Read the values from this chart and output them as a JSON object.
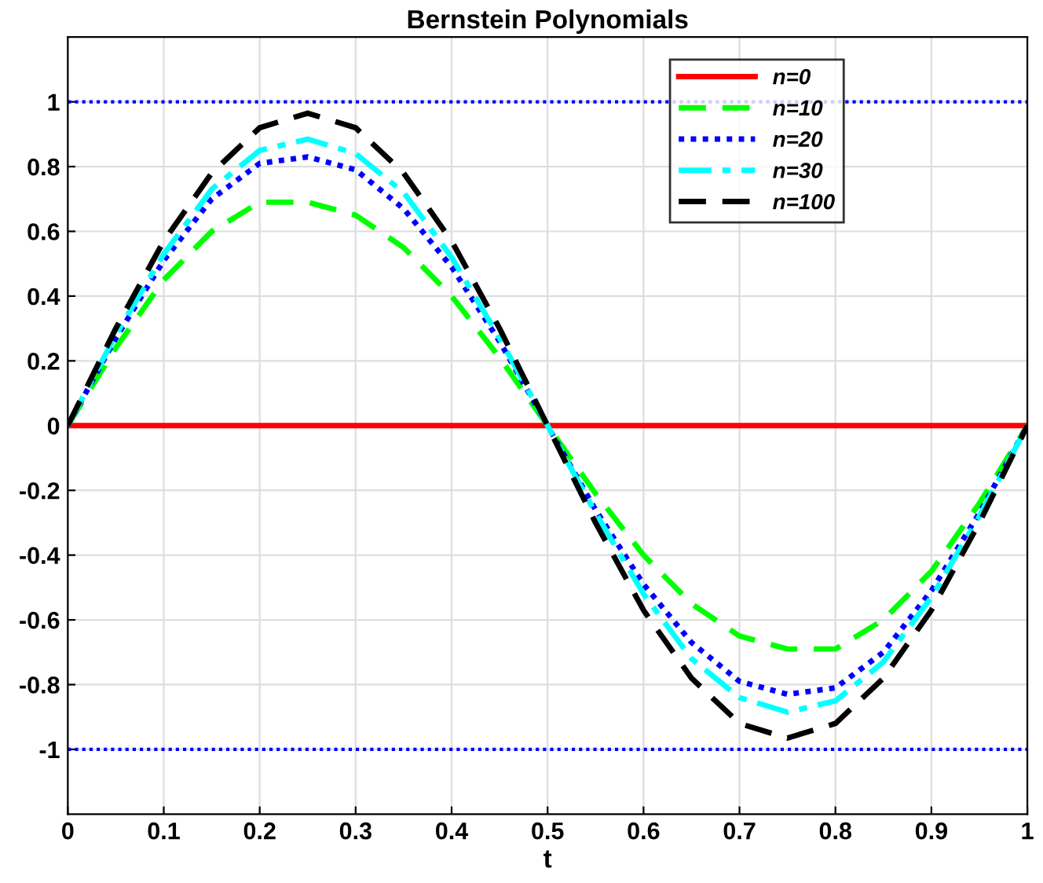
{
  "chart_data": {
    "type": "line",
    "title": "Bernstein Polynomials",
    "xlabel": "t",
    "x": [
      0,
      0.05,
      0.1,
      0.15,
      0.2,
      0.25,
      0.3,
      0.35,
      0.4,
      0.45,
      0.5,
      0.55,
      0.6,
      0.65,
      0.7,
      0.75,
      0.8,
      0.85,
      0.9,
      0.95,
      1
    ],
    "series": [
      {
        "name": "n=0",
        "color": "#ff0000",
        "line_style": "solid",
        "values": [
          0,
          0,
          0,
          0,
          0,
          0,
          0,
          0,
          0,
          0,
          0,
          0,
          0,
          0,
          0,
          0,
          0,
          0,
          0,
          0,
          0
        ]
      },
      {
        "name": "n=10",
        "color": "#00ff00",
        "line_style": "dashed",
        "values": [
          0,
          0.24,
          0.45,
          0.6,
          0.69,
          0.69,
          0.65,
          0.55,
          0.4,
          0.21,
          0,
          -0.21,
          -0.4,
          -0.55,
          -0.65,
          -0.69,
          -0.69,
          -0.6,
          -0.45,
          -0.24,
          0
        ]
      },
      {
        "name": "n=20",
        "color": "#0000ff",
        "line_style": "dotted",
        "values": [
          0,
          0.27,
          0.51,
          0.7,
          0.81,
          0.83,
          0.79,
          0.67,
          0.49,
          0.26,
          0,
          -0.26,
          -0.49,
          -0.67,
          -0.79,
          -0.83,
          -0.81,
          -0.7,
          -0.51,
          -0.27,
          0
        ]
      },
      {
        "name": "n=30",
        "color": "#00ffff",
        "line_style": "dashdot",
        "values": [
          0,
          0.28,
          0.53,
          0.73,
          0.85,
          0.885,
          0.84,
          0.72,
          0.52,
          0.27,
          0,
          -0.27,
          -0.52,
          -0.72,
          -0.84,
          -0.885,
          -0.85,
          -0.73,
          -0.53,
          -0.28,
          0
        ]
      },
      {
        "name": "n=100",
        "color": "#000000",
        "line_style": "dashed",
        "values": [
          0,
          0.3,
          0.57,
          0.78,
          0.92,
          0.965,
          0.92,
          0.78,
          0.57,
          0.3,
          0,
          -0.3,
          -0.57,
          -0.78,
          -0.92,
          -0.965,
          -0.92,
          -0.78,
          -0.57,
          -0.3,
          0
        ]
      }
    ],
    "ref_lines": [
      {
        "axis": "y",
        "value": 1,
        "color": "#0000ff",
        "line_style": "dotted"
      },
      {
        "axis": "y",
        "value": -1,
        "color": "#0000ff",
        "line_style": "dotted"
      }
    ],
    "xlim": [
      0,
      1
    ],
    "xticks": [
      0,
      0.1,
      0.2,
      0.3,
      0.4,
      0.5,
      0.6,
      0.7,
      0.8,
      0.9,
      1
    ],
    "ylim": [
      -1.2,
      1.2
    ],
    "yticks": [
      -1,
      -0.8,
      -0.6,
      -0.4,
      -0.2,
      0,
      0.2,
      0.4,
      0.6,
      0.8,
      1
    ],
    "grid": true,
    "legend": "top right"
  }
}
